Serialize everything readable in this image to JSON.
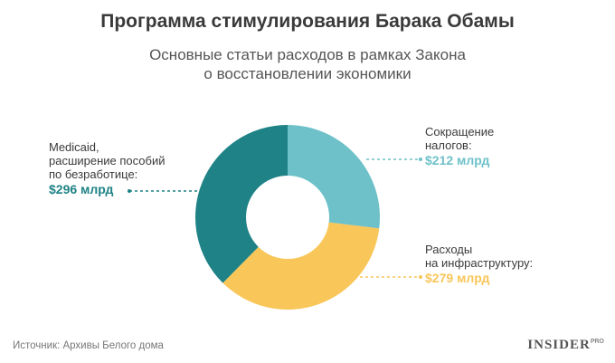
{
  "title": "Программа стимулирования Барака Обамы",
  "subtitle": [
    "Основные статьи расходов в рамках Закона",
    "о восстановлении экономики"
  ],
  "source": "Источник: Архивы Белого дома",
  "logo": {
    "main": "INSIDER",
    "sup": "PRO"
  },
  "chart_data": {
    "type": "pie",
    "donut": true,
    "unit": "млрд долл.",
    "slices": [
      {
        "label_lines": [
          "Сокращение",
          "налогов:"
        ],
        "value_label": "$212 млрд",
        "value": 212,
        "color": "#6ec1c9"
      },
      {
        "label_lines": [
          "Расходы",
          "на инфраструктуру:"
        ],
        "value_label": "$279 млрд",
        "value": 279,
        "color": "#f9c65a"
      },
      {
        "label_lines": [
          "Medicaid,",
          "расширение пособий",
          "по безработице:"
        ],
        "value_label": "$296 млрд",
        "value": 296,
        "color": "#1e8286"
      }
    ]
  }
}
